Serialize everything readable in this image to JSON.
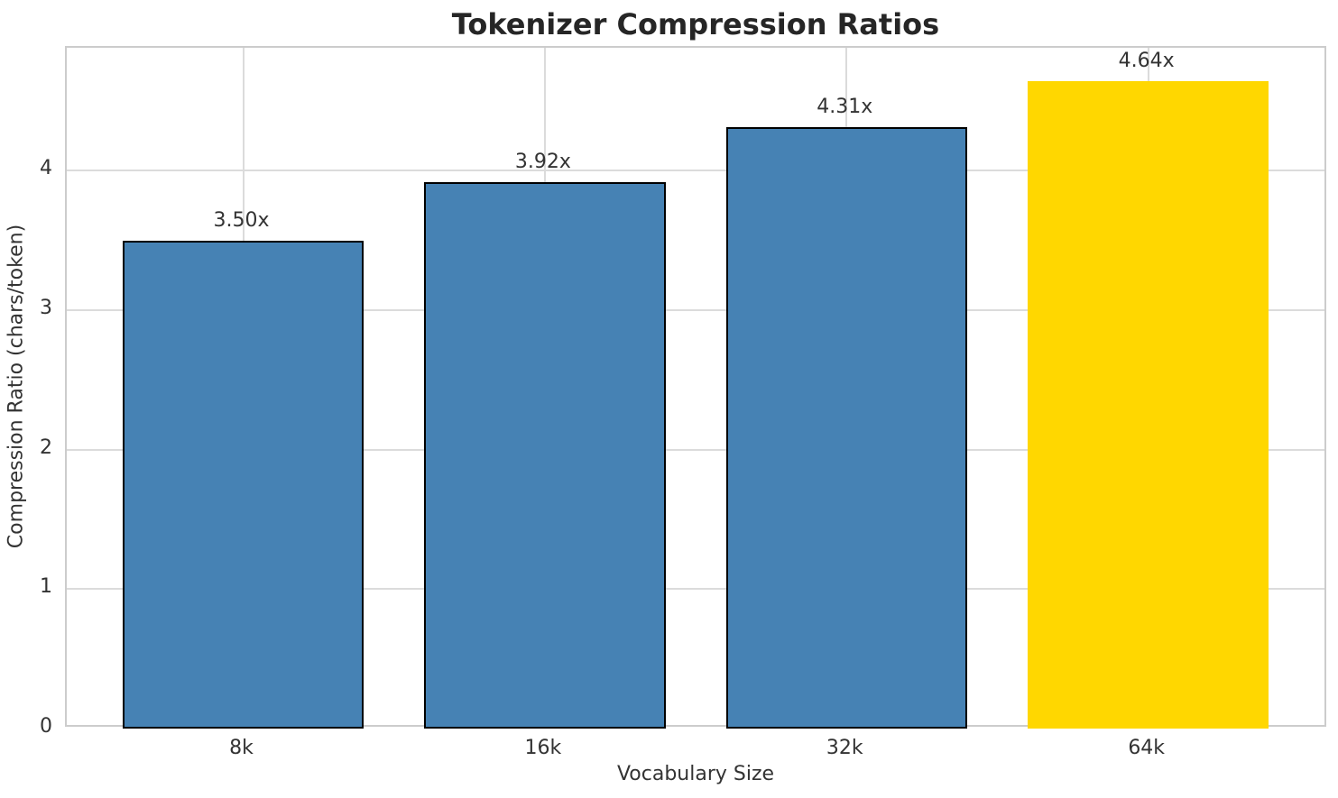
{
  "chart_data": {
    "type": "bar",
    "title": "Tokenizer Compression Ratios",
    "xlabel": "Vocabulary Size",
    "ylabel": "Compression Ratio (chars/token)",
    "categories": [
      "8k",
      "16k",
      "32k",
      "64k"
    ],
    "values": [
      3.5,
      3.92,
      4.31,
      4.64
    ],
    "bar_labels": [
      "3.50x",
      "3.92x",
      "4.31x",
      "4.64x"
    ],
    "bar_colors": [
      "#4682B4",
      "#4682B4",
      "#4682B4",
      "#FFD700"
    ],
    "bar_edge_colors": [
      "#000000",
      "#000000",
      "#000000",
      "none"
    ],
    "yticks": [
      "0",
      "1",
      "2",
      "3",
      "4"
    ],
    "ylim": [
      0,
      4.88
    ],
    "grid": "both",
    "legend": "none",
    "colors": {
      "default_bar": "#4682B4",
      "highlight_bar": "#FFD700",
      "bar_edge": "#000000",
      "grid": "#DBDBDB",
      "spine": "#CCCCCC",
      "text": "#333333",
      "title_text": "#262626"
    }
  }
}
